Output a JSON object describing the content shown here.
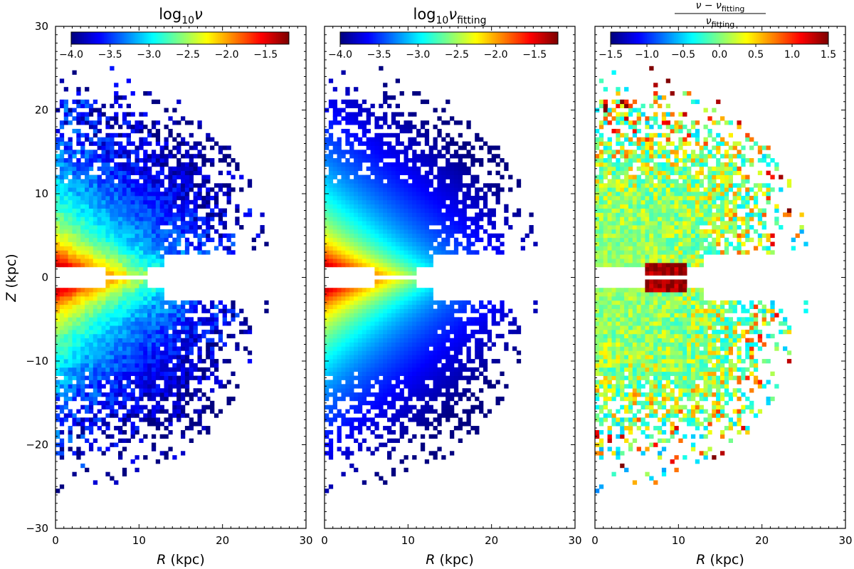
{
  "chart_data": [
    {
      "type": "heatmap",
      "title": "log10 ν",
      "title_main": "log",
      "title_sub": "10",
      "title_var": "ν",
      "xlabel_var": "R",
      "xlabel_unit": " (kpc)",
      "ylabel_var": "Z",
      "ylabel_unit": " (kpc)",
      "xlim": [
        0,
        30
      ],
      "ylim": [
        -30,
        30
      ],
      "xticks": [
        0,
        10,
        20,
        30
      ],
      "yticks": [
        -30,
        -20,
        -10,
        0,
        10,
        20,
        30
      ],
      "xtick_labels": [
        "0",
        "10",
        "20",
        "30"
      ],
      "ytick_labels": [
        "−30",
        "−20",
        "−10",
        "0",
        "10",
        "20",
        "30"
      ],
      "colormap": "jet",
      "colorbar": {
        "vmin": -4.0,
        "vmax": -1.2,
        "ticks": [
          -4.0,
          -3.5,
          -3.0,
          -2.5,
          -2.0,
          -1.5
        ],
        "tick_labels": [
          "−4.0",
          "−3.5",
          "−3.0",
          "−2.5",
          "−2.0",
          "−1.5"
        ],
        "placement": "top"
      },
      "description": "Observed stellar number density; maximum near R≈0–10 kpc, |Z|≈2–5 kpc, decreasing outward; sparse noisy bins at large |Z| and R"
    },
    {
      "type": "heatmap",
      "title": "log10 ν_fitting",
      "title_main": "log",
      "title_sub": "10",
      "title_var": "ν",
      "title_var_sub": "fitting",
      "xlabel_var": "R",
      "xlabel_unit": " (kpc)",
      "xlim": [
        0,
        30
      ],
      "ylim": [
        -30,
        30
      ],
      "xticks": [
        0,
        10,
        20,
        30
      ],
      "xtick_labels": [
        "0",
        "10",
        "20",
        "30"
      ],
      "colormap": "jet",
      "colorbar": {
        "vmin": -4.0,
        "vmax": -1.2,
        "ticks": [
          -4.0,
          -3.5,
          -3.0,
          -2.5,
          -2.0,
          -1.5
        ],
        "tick_labels": [
          "−4.0",
          "−3.5",
          "−3.0",
          "−2.5",
          "−2.0",
          "−1.5"
        ],
        "placement": "top"
      },
      "description": "Model-fitted stellar density evaluated on the same bins; smooth radial/vertical gradient"
    },
    {
      "type": "heatmap",
      "title": "(ν − ν_fitting) / ν_fitting",
      "title_num_var": "ν − ν",
      "title_num_sub": "fitting",
      "title_den_var": "ν",
      "title_den_sub": "fitting",
      "xlabel_var": "R",
      "xlabel_unit": " (kpc)",
      "xlim": [
        0,
        30
      ],
      "ylim": [
        -30,
        30
      ],
      "xticks": [
        0,
        10,
        20,
        30
      ],
      "xtick_labels": [
        "0",
        "10",
        "20",
        "30"
      ],
      "colormap": "jet",
      "colorbar": {
        "vmin": -1.5,
        "vmax": 1.5,
        "ticks": [
          -1.5,
          -1.0,
          -0.5,
          0.0,
          0.5,
          1.0,
          1.5
        ],
        "tick_labels": [
          "−1.5",
          "−1.0",
          "−0.5",
          "0.0",
          "0.5",
          "1.0",
          "1.5"
        ],
        "placement": "top"
      },
      "description": "Fractional residuals; near 0 in the inner well-sampled region, large positive residuals at large R and |Z| and near R≈8 kpc, Z≈0"
    }
  ]
}
